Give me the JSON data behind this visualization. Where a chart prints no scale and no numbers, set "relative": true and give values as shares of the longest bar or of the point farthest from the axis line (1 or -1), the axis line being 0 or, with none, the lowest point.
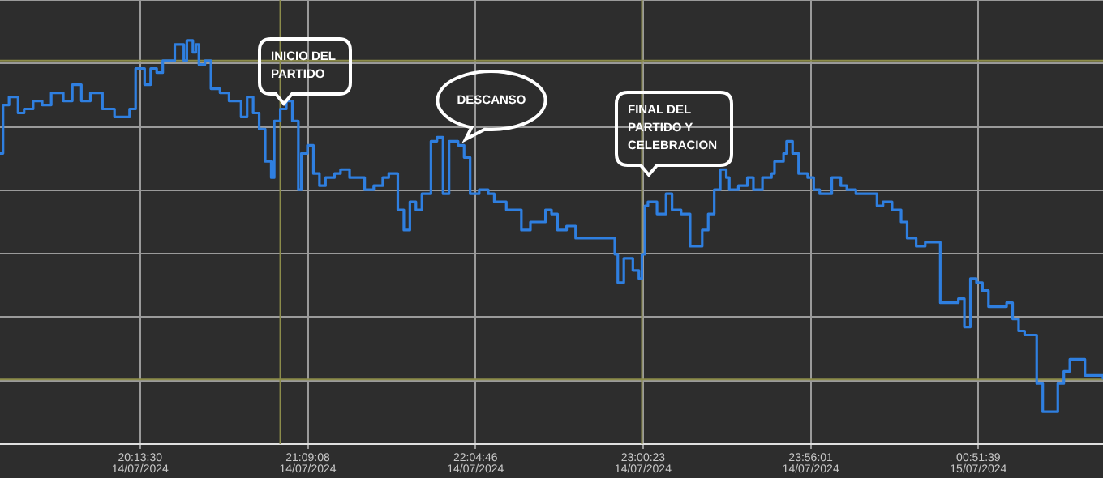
{
  "chart_data": {
    "type": "step",
    "relative": true,
    "tick_labels": "x",
    "grid": true,
    "xlim": [
      "2024-07-14T19:27",
      "2024-07-15T01:33"
    ],
    "xticks": [
      {
        "value": "2024-07-14T20:13:30",
        "label": "20:13:30\n14/07/2024"
      },
      {
        "value": "2024-07-14T21:09:08",
        "label": "21:09:08\n14/07/2024"
      },
      {
        "value": "2024-07-14T22:04:46",
        "label": "22:04:46\n14/07/2024"
      },
      {
        "value": "2024-07-14T23:00:23",
        "label": "23:00:23\n14/07/2024"
      },
      {
        "value": "2024-07-14T23:56:01",
        "label": "23:56:01\n14/07/2024"
      },
      {
        "value": "2024-07-15T00:51:39",
        "label": "00:51:39\n15/07/2024"
      }
    ],
    "series": [
      {
        "color": "#2f7fe0",
        "x": [
          "2024-07-14T19:27",
          "2024-07-14T19:28",
          "2024-07-14T19:30",
          "2024-07-14T19:33",
          "2024-07-14T19:35",
          "2024-07-14T19:38",
          "2024-07-14T19:41",
          "2024-07-14T19:44",
          "2024-07-14T19:48",
          "2024-07-14T19:51",
          "2024-07-14T19:54",
          "2024-07-14T19:57",
          "2024-07-14T20:01",
          "2024-07-14T20:05",
          "2024-07-14T20:08",
          "2024-07-14T20:10",
          "2024-07-14T20:12",
          "2024-07-14T20:15",
          "2024-07-14T20:17",
          "2024-07-14T20:19",
          "2024-07-14T20:21",
          "2024-07-14T20:25",
          "2024-07-14T20:28",
          "2024-07-14T20:29",
          "2024-07-14T20:31",
          "2024-07-14T20:32",
          "2024-07-14T20:33",
          "2024-07-14T20:35",
          "2024-07-14T20:37",
          "2024-07-14T20:40",
          "2024-07-14T20:43",
          "2024-07-14T20:45",
          "2024-07-14T20:47",
          "2024-07-14T20:49",
          "2024-07-14T20:51",
          "2024-07-14T20:53",
          "2024-07-14T20:55",
          "2024-07-14T20:57",
          "2024-07-14T20:58",
          "2024-07-14T21:00",
          "2024-07-14T21:02",
          "2024-07-14T21:04",
          "2024-07-14T21:06",
          "2024-07-14T21:07",
          "2024-07-14T21:09",
          "2024-07-14T21:11",
          "2024-07-14T21:13",
          "2024-07-14T21:15",
          "2024-07-14T21:18",
          "2024-07-14T21:20",
          "2024-07-14T21:23",
          "2024-07-14T21:26",
          "2024-07-14T21:28",
          "2024-07-14T21:31",
          "2024-07-14T21:34",
          "2024-07-14T21:36",
          "2024-07-14T21:39",
          "2024-07-14T21:41",
          "2024-07-14T21:43",
          "2024-07-14T21:45",
          "2024-07-14T21:47",
          "2024-07-14T21:50",
          "2024-07-14T21:52",
          "2024-07-14T21:54",
          "2024-07-14T21:56",
          "2024-07-14T21:59",
          "2024-07-14T22:01",
          "2024-07-14T22:03",
          "2024-07-14T22:06",
          "2024-07-14T22:09",
          "2024-07-14T22:11",
          "2024-07-14T22:15",
          "2024-07-14T22:18",
          "2024-07-14T22:20",
          "2024-07-14T22:23",
          "2024-07-14T22:26",
          "2024-07-14T22:28",
          "2024-07-14T22:30",
          "2024-07-14T22:32",
          "2024-07-14T22:33",
          "2024-07-14T22:35",
          "2024-07-14T22:38",
          "2024-07-14T22:41",
          "2024-07-14T22:46",
          "2024-07-14T22:51",
          "2024-07-14T22:52",
          "2024-07-14T22:54",
          "2024-07-14T22:57",
          "2024-07-14T22:59",
          "2024-07-14T23:00",
          "2024-07-14T23:01",
          "2024-07-14T23:02",
          "2024-07-14T23:05",
          "2024-07-14T23:08",
          "2024-07-14T23:10",
          "2024-07-14T23:13",
          "2024-07-14T23:16",
          "2024-07-14T23:18",
          "2024-07-14T23:20",
          "2024-07-14T23:22",
          "2024-07-14T23:24",
          "2024-07-14T23:26",
          "2024-07-14T23:28",
          "2024-07-14T23:29",
          "2024-07-14T23:32",
          "2024-07-14T23:35",
          "2024-07-14T23:37",
          "2024-07-14T23:40",
          "2024-07-14T23:43",
          "2024-07-14T23:44",
          "2024-07-14T23:47",
          "2024-07-14T23:48",
          "2024-07-14T23:50",
          "2024-07-14T23:52",
          "2024-07-14T23:55",
          "2024-07-14T23:57",
          "2024-07-14T23:59",
          "2024-07-15T00:03",
          "2024-07-15T00:06",
          "2024-07-15T00:08",
          "2024-07-15T00:11",
          "2024-07-15T00:15",
          "2024-07-15T00:18",
          "2024-07-15T00:20",
          "2024-07-15T00:23",
          "2024-07-15T00:26",
          "2024-07-15T00:28",
          "2024-07-15T00:31",
          "2024-07-15T00:34",
          "2024-07-15T00:37",
          "2024-07-15T00:39",
          "2024-07-15T00:42",
          "2024-07-15T00:45",
          "2024-07-15T00:47",
          "2024-07-15T00:49",
          "2024-07-15T00:51",
          "2024-07-15T00:53",
          "2024-07-15T00:55",
          "2024-07-15T00:58",
          "2024-07-15T01:01",
          "2024-07-15T01:03",
          "2024-07-15T01:05",
          "2024-07-15T01:07",
          "2024-07-15T01:11",
          "2024-07-15T01:13",
          "2024-07-15T01:16",
          "2024-07-15T01:18",
          "2024-07-15T01:20",
          "2024-07-15T01:22",
          "2024-07-15T01:25",
          "2024-07-15T01:27",
          "2024-07-15T01:30",
          "2024-07-15T01:33"
        ],
        "values": [
          0.72,
          0.84,
          0.86,
          0.82,
          0.83,
          0.85,
          0.84,
          0.87,
          0.85,
          0.89,
          0.85,
          0.87,
          0.83,
          0.81,
          0.81,
          0.83,
          0.93,
          0.89,
          0.93,
          0.92,
          0.95,
          0.99,
          0.95,
          1,
          0.97,
          0.99,
          0.94,
          0.95,
          0.88,
          0.87,
          0.85,
          0.85,
          0.81,
          0.86,
          0.82,
          0.78,
          0.7,
          0.66,
          0.8,
          0.83,
          0.85,
          0.8,
          0.63,
          0.72,
          0.74,
          0.67,
          0.64,
          0.66,
          0.67,
          0.68,
          0.66,
          0.66,
          0.63,
          0.64,
          0.66,
          0.67,
          0.58,
          0.53,
          0.6,
          0.58,
          0.62,
          0.75,
          0.76,
          0.62,
          0.75,
          0.74,
          0.71,
          0.62,
          0.63,
          0.62,
          0.6,
          0.58,
          0.58,
          0.53,
          0.55,
          0.55,
          0.58,
          0.57,
          0.53,
          0.53,
          0.54,
          0.51,
          0.51,
          0.51,
          0.47,
          0.4,
          0.46,
          0.43,
          0.41,
          0.47,
          0.59,
          0.6,
          0.57,
          0.62,
          0.58,
          0.57,
          0.49,
          0.49,
          0.53,
          0.57,
          0.63,
          0.68,
          0.66,
          0.63,
          0.64,
          0.66,
          0.63,
          0.66,
          0.67,
          0.7,
          0.72,
          0.75,
          0.72,
          0.67,
          0.66,
          0.63,
          0.62,
          0.66,
          0.64,
          0.63,
          0.62,
          0.62,
          0.59,
          0.6,
          0.58,
          0.55,
          0.51,
          0.49,
          0.5,
          0.5,
          0.35,
          0.35,
          0.36,
          0.29,
          0.41,
          0.4,
          0.38,
          0.34,
          0.34,
          0.35,
          0.31,
          0.28,
          0.27,
          0.15,
          0.08,
          0.08,
          0.15,
          0.18,
          0.21,
          0.21,
          0.17,
          0.17,
          0.16
        ]
      }
    ],
    "ref_lines": [
      {
        "axis": "x",
        "value": "2024-07-14T21:00",
        "color": "#8c8c4a"
      },
      {
        "axis": "x",
        "value": "2024-07-14T23:00",
        "color": "#8c8c4a"
      },
      {
        "axis": "y",
        "value": 0.95,
        "color": "#8c8c4a"
      },
      {
        "axis": "y",
        "value": 0.16,
        "color": "#8c8c4a"
      }
    ],
    "annotations": [
      "INICIO DEL PARTIDO",
      "DESCANSO",
      "FINAL DEL PARTIDO Y CELEBRACION"
    ]
  }
}
